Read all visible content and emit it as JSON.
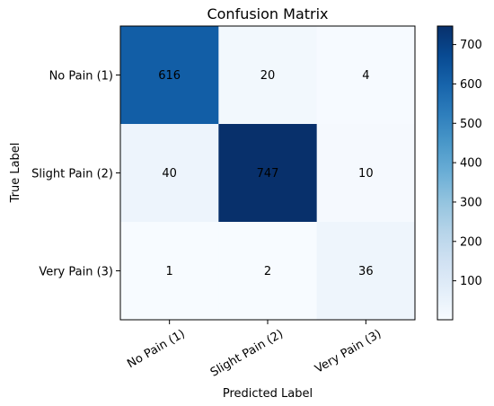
{
  "chart_data": {
    "type": "heatmap",
    "title": "Confusion Matrix",
    "xlabel": "Predicted Label",
    "ylabel": "True Label",
    "x_categories": [
      "No Pain (1)",
      "Slight Pain (2)",
      "Very Pain (3)"
    ],
    "y_categories": [
      "No Pain (1)",
      "Slight Pain (2)",
      "Very Pain (3)"
    ],
    "matrix": [
      [
        616,
        20,
        4
      ],
      [
        40,
        747,
        10
      ],
      [
        1,
        2,
        36
      ]
    ],
    "colormap": "Blues",
    "vmin": 1,
    "vmax": 747,
    "colorbar_ticks": [
      100,
      200,
      300,
      400,
      500,
      600,
      700
    ]
  }
}
